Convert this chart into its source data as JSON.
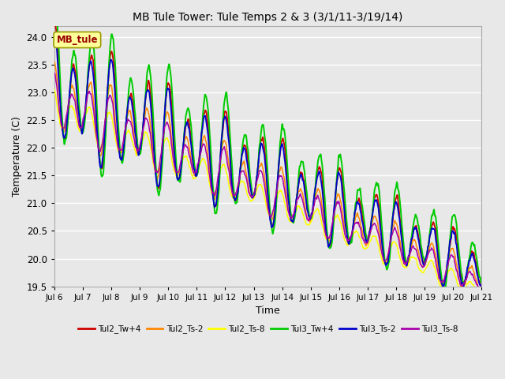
{
  "title": "MB Tule Tower: Tule Temps 2 & 3 (3/1/11-3/19/14)",
  "xlabel": "Time",
  "ylabel": "Temperature (C)",
  "ylim": [
    19.5,
    24.2
  ],
  "yticks": [
    19.5,
    20.0,
    20.5,
    21.0,
    21.5,
    22.0,
    22.5,
    23.0,
    23.5,
    24.0
  ],
  "xtick_labels": [
    "Jul 6",
    "Jul 7",
    "Jul 8",
    "Jul 9",
    "Jul 10",
    "Jul 11",
    "Jul 12",
    "Jul 13",
    "Jul 14",
    "Jul 15",
    "Jul 16",
    "Jul 17",
    "Jul 18",
    "Jul 19",
    "Jul 20",
    "Jul 21"
  ],
  "series_colors": [
    "#cc0000",
    "#ff8800",
    "#ffff00",
    "#00cc00",
    "#0000cc",
    "#aa00aa"
  ],
  "series_labels": [
    "Tul2_Tw+4",
    "Tul2_Ts-2",
    "Tul2_Ts-8",
    "Tul3_Tw+4",
    "Tul3_Ts-2",
    "Tul3_Ts-8"
  ],
  "annotation_text": "MB_tule",
  "annotation_color": "#990000",
  "annotation_bg": "#ffff99",
  "annotation_edge": "#999900",
  "background_color": "#e8e8e8",
  "grid_color": "#ffffff",
  "grid_alpha": 1.0
}
